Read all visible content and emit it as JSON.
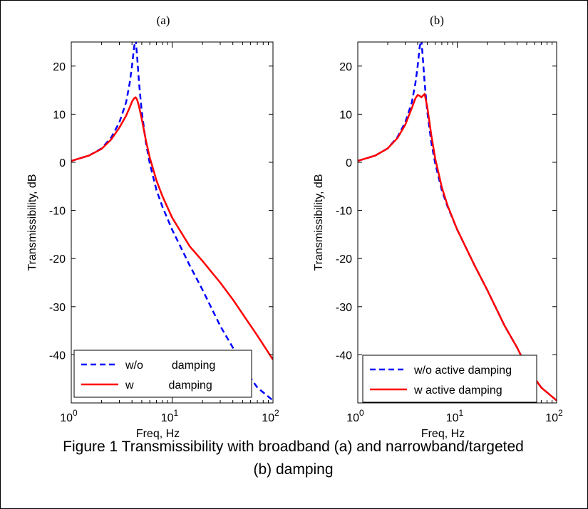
{
  "caption_lines": [
    "Figure 1 Transmissibility with broadband (a) and narrowband/targeted",
    "(b) damping"
  ],
  "chart_data": [
    {
      "type": "line",
      "title": "(a)",
      "xlabel": "Freq, Hz",
      "ylabel": "Transmissibility, dB",
      "xscale": "log",
      "xlim": [
        1,
        100
      ],
      "ylim": [
        -50,
        25
      ],
      "yticks": [
        20,
        10,
        0,
        -10,
        -20,
        -30,
        -40
      ],
      "xtick_labels": [
        {
          "base": "10",
          "exp": "0"
        },
        {
          "base": "10",
          "exp": "1"
        },
        {
          "base": "10",
          "exp": "2"
        }
      ],
      "legend_position": "bottom-left",
      "series": [
        {
          "name": "w/o         damping",
          "color": "#0000ff",
          "style": "dashed",
          "x": [
            1,
            1.5,
            2,
            2.5,
            3,
            3.5,
            3.8,
            4.0,
            4.2,
            4.35,
            4.5,
            4.7,
            5,
            5.5,
            6,
            7,
            8,
            10,
            15,
            20,
            30,
            40,
            50,
            70,
            100
          ],
          "y": [
            0.3,
            1.4,
            2.9,
            5.2,
            8.3,
            12.5,
            16.5,
            20.0,
            24.0,
            25.5,
            22.0,
            16.5,
            10.5,
            4.0,
            -0.2,
            -5.8,
            -9.2,
            -14.0,
            -21.5,
            -26.5,
            -34.0,
            -38.5,
            -42.5,
            -46.8,
            -49.5
          ]
        },
        {
          "name": "w           damping",
          "color": "#ff0000",
          "style": "solid",
          "x": [
            1,
            1.5,
            2,
            2.5,
            3,
            3.5,
            3.8,
            4.0,
            4.2,
            4.35,
            4.5,
            4.7,
            5,
            5.5,
            6,
            7,
            8,
            10,
            15,
            20,
            30,
            40,
            50,
            70,
            100
          ],
          "y": [
            0.3,
            1.4,
            2.8,
            4.8,
            7.2,
            9.7,
            11.4,
            12.6,
            13.3,
            13.5,
            13.0,
            11.6,
            9.0,
            4.5,
            1.0,
            -3.8,
            -7.0,
            -11.5,
            -17.5,
            -20.5,
            -25.0,
            -28.5,
            -31.5,
            -36.0,
            -41.0
          ]
        }
      ]
    },
    {
      "type": "line",
      "title": "(b)",
      "xlabel": "Freq, Hz",
      "ylabel": "Transmissibility, dB",
      "xscale": "log",
      "xlim": [
        1,
        100
      ],
      "ylim": [
        -50,
        25
      ],
      "yticks": [
        20,
        10,
        0,
        -10,
        -20,
        -30,
        -40
      ],
      "xtick_labels": [
        {
          "base": "10",
          "exp": "0"
        },
        {
          "base": "10",
          "exp": "1"
        },
        {
          "base": "10",
          "exp": "2"
        }
      ],
      "legend_position": "bottom-left",
      "series": [
        {
          "name": "w/o active damping",
          "color": "#0000ff",
          "style": "dashed",
          "x": [
            1,
            1.5,
            2,
            2.5,
            3,
            3.5,
            3.8,
            4.0,
            4.2,
            4.35,
            4.5,
            4.7,
            5,
            5.5,
            6,
            7,
            8,
            10,
            15,
            20,
            30,
            40,
            50,
            70,
            100
          ],
          "y": [
            0.3,
            1.4,
            2.9,
            5.2,
            8.3,
            12.5,
            16.5,
            20.0,
            24.0,
            25.5,
            22.0,
            16.5,
            10.5,
            4.0,
            -0.2,
            -5.8,
            -9.2,
            -14.0,
            -21.5,
            -26.5,
            -34.0,
            -38.5,
            -42.5,
            -46.8,
            -49.5
          ]
        },
        {
          "name": "w active damping",
          "color": "#ff0000",
          "style": "solid",
          "x": [
            1,
            1.5,
            2,
            2.5,
            3,
            3.5,
            3.8,
            4.0,
            4.2,
            4.35,
            4.5,
            4.7,
            5,
            5.5,
            6,
            7,
            8,
            10,
            15,
            20,
            30,
            40,
            50,
            70,
            100
          ],
          "y": [
            0.3,
            1.4,
            2.9,
            5.0,
            7.8,
            11.3,
            13.3,
            14.0,
            13.8,
            13.5,
            13.8,
            14.2,
            11.5,
            5.5,
            0.8,
            -5.2,
            -9.0,
            -14.0,
            -21.5,
            -26.5,
            -34.0,
            -38.5,
            -42.5,
            -46.8,
            -49.5
          ]
        }
      ]
    }
  ]
}
